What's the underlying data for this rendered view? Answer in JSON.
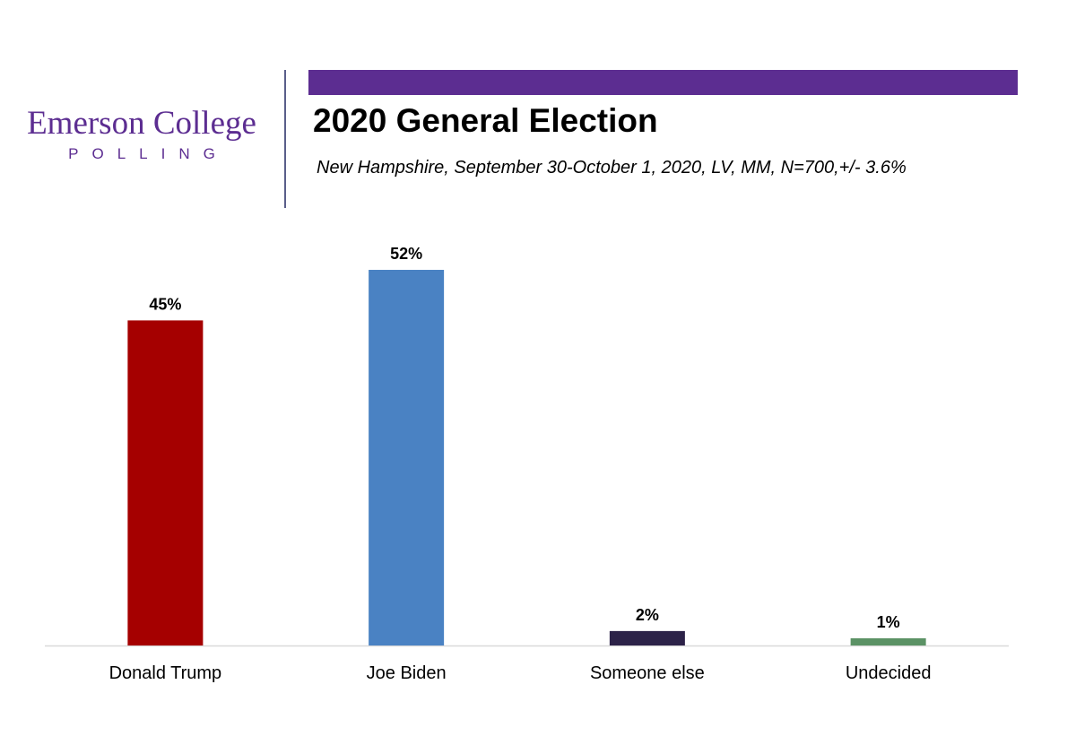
{
  "logo": {
    "name": "Emerson College",
    "tagline": "POLLING"
  },
  "header": {
    "title": "2020 General Election",
    "subtitle": "New Hampshire, September 30-October 1, 2020, LV, MM,  N=700,+/-  3.6%"
  },
  "colors": {
    "brand": "#5c2d91",
    "axis": "#d9d9d9"
  },
  "chart_data": {
    "type": "bar",
    "categories": [
      "Donald Trump",
      "Joe Biden",
      "Someone else",
      "Undecided"
    ],
    "values": [
      45,
      52,
      2,
      1
    ],
    "data_labels": [
      "45%",
      "52%",
      "2%",
      "1%"
    ],
    "colors": [
      "#a50000",
      "#4a82c3",
      "#2c2248",
      "#5b9265"
    ],
    "title": "2020 General Election",
    "subtitle": "New Hampshire, September 30-October 1, 2020, LV, MM,  N=700,+/-  3.6%",
    "xlabel": "",
    "ylabel": "",
    "ylim": [
      0,
      52
    ],
    "grid": false,
    "legend": "none"
  }
}
